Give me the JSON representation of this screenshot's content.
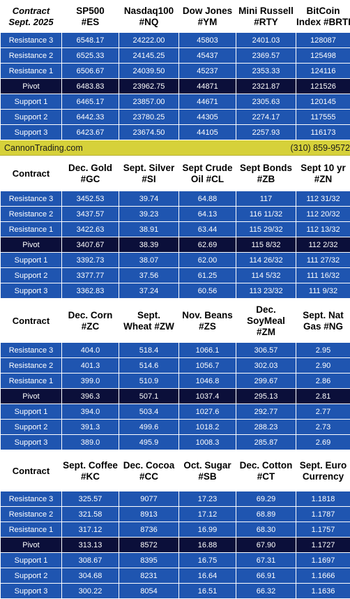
{
  "sections": [
    {
      "header_italic": true,
      "contract_label": [
        "Contract",
        "Sept. 2025"
      ],
      "columns": [
        [
          "SP500",
          "#ES"
        ],
        [
          "Nasdaq100",
          "#NQ"
        ],
        [
          "Dow Jones",
          "#YM"
        ],
        [
          "Mini Russell",
          "#RTY"
        ],
        [
          "BitCoin",
          "Index #BRTI"
        ]
      ],
      "rows": [
        {
          "label": "Resistance 3",
          "values": [
            "6548.17",
            "24222.00",
            "45803",
            "2401.03",
            "128087"
          ]
        },
        {
          "label": "Resistance 2",
          "values": [
            "6525.33",
            "24145.25",
            "45437",
            "2369.57",
            "125498"
          ]
        },
        {
          "label": "Resistance 1",
          "values": [
            "6506.67",
            "24039.50",
            "45237",
            "2353.33",
            "124116"
          ]
        },
        {
          "label": "Pivot",
          "values": [
            "6483.83",
            "23962.75",
            "44871",
            "2321.87",
            "121526"
          ]
        },
        {
          "label": "Support 1",
          "values": [
            "6465.17",
            "23857.00",
            "44671",
            "2305.63",
            "120145"
          ]
        },
        {
          "label": "Support 2",
          "values": [
            "6442.33",
            "23780.25",
            "44305",
            "2274.17",
            "117555"
          ]
        },
        {
          "label": "Support 3",
          "values": [
            "6423.67",
            "23674.50",
            "44105",
            "2257.93",
            "116173"
          ]
        }
      ]
    },
    {
      "header_italic": false,
      "contract_label": [
        "Contract"
      ],
      "columns": [
        [
          "Dec. Gold",
          "#GC"
        ],
        [
          "Sept. Silver",
          "#SI"
        ],
        [
          "Sept Crude",
          "Oil #CL"
        ],
        [
          "Sept Bonds",
          "#ZB"
        ],
        [
          "Sept 10 yr",
          "#ZN"
        ]
      ],
      "rows": [
        {
          "label": "Resistance 3",
          "values": [
            "3452.53",
            "39.74",
            "64.88",
            "117",
            "112 31/32"
          ]
        },
        {
          "label": "Resistance 2",
          "values": [
            "3437.57",
            "39.23",
            "64.13",
            "116 11/32",
            "112 20/32"
          ]
        },
        {
          "label": "Resistance 1",
          "values": [
            "3422.63",
            "38.91",
            "63.44",
            "115 29/32",
            "112 13/32"
          ]
        },
        {
          "label": "Pivot",
          "values": [
            "3407.67",
            "38.39",
            "62.69",
            "115  8/32",
            "112  2/32"
          ]
        },
        {
          "label": "Support 1",
          "values": [
            "3392.73",
            "38.07",
            "62.00",
            "114 26/32",
            "111 27/32"
          ]
        },
        {
          "label": "Support 2",
          "values": [
            "3377.77",
            "37.56",
            "61.25",
            "114  5/32",
            "111 16/32"
          ]
        },
        {
          "label": "Support 3",
          "values": [
            "3362.83",
            "37.24",
            "60.56",
            "113 23/32",
            "111  9/32"
          ]
        }
      ]
    },
    {
      "header_italic": false,
      "contract_label": [
        "Contract"
      ],
      "columns": [
        [
          "Dec. Corn",
          "#ZC"
        ],
        [
          "Sept.",
          "Wheat #ZW"
        ],
        [
          "Nov. Beans",
          "#ZS"
        ],
        [
          "Dec.",
          "SoyMeal",
          "#ZM"
        ],
        [
          "Sept. Nat",
          "Gas #NG"
        ]
      ],
      "rows": [
        {
          "label": "Resistance 3",
          "values": [
            "404.0",
            "518.4",
            "1066.1",
            "306.57",
            "2.95"
          ]
        },
        {
          "label": "Resistance 2",
          "values": [
            "401.3",
            "514.6",
            "1056.7",
            "302.03",
            "2.90"
          ]
        },
        {
          "label": "Resistance 1",
          "values": [
            "399.0",
            "510.9",
            "1046.8",
            "299.67",
            "2.86"
          ]
        },
        {
          "label": "Pivot",
          "values": [
            "396.3",
            "507.1",
            "1037.4",
            "295.13",
            "2.81"
          ]
        },
        {
          "label": "Support 1",
          "values": [
            "394.0",
            "503.4",
            "1027.6",
            "292.77",
            "2.77"
          ]
        },
        {
          "label": "Support 2",
          "values": [
            "391.3",
            "499.6",
            "1018.2",
            "288.23",
            "2.73"
          ]
        },
        {
          "label": "Support 3",
          "values": [
            "389.0",
            "495.9",
            "1008.3",
            "285.87",
            "2.69"
          ]
        }
      ]
    },
    {
      "header_italic": false,
      "contract_label": [
        "Contract"
      ],
      "columns": [
        [
          "Sept. Coffee",
          "#KC"
        ],
        [
          "Dec. Cocoa",
          "#CC"
        ],
        [
          "Oct. Sugar",
          "#SB"
        ],
        [
          "Dec. Cotton",
          "#CT"
        ],
        [
          "Sept. Euro",
          "Currency"
        ]
      ],
      "rows": [
        {
          "label": "Resistance 3",
          "values": [
            "325.57",
            "9077",
            "17.23",
            "69.29",
            "1.1818"
          ]
        },
        {
          "label": "Resistance 2",
          "values": [
            "321.58",
            "8913",
            "17.12",
            "68.89",
            "1.1787"
          ]
        },
        {
          "label": "Resistance 1",
          "values": [
            "317.12",
            "8736",
            "16.99",
            "68.30",
            "1.1757"
          ]
        },
        {
          "label": "Pivot",
          "values": [
            "313.13",
            "8572",
            "16.88",
            "67.90",
            "1.1727"
          ]
        },
        {
          "label": "Support 1",
          "values": [
            "308.67",
            "8395",
            "16.75",
            "67.31",
            "1.1697"
          ]
        },
        {
          "label": "Support 2",
          "values": [
            "304.68",
            "8231",
            "16.64",
            "66.91",
            "1.1666"
          ]
        },
        {
          "label": "Support 3",
          "values": [
            "300.22",
            "8054",
            "16.51",
            "66.32",
            "1.1636"
          ]
        }
      ]
    }
  ],
  "banner": {
    "site": "CannonTrading.com",
    "phone": "(310) 859-9572"
  },
  "colors": {
    "row_bg": "#1f55b0",
    "pivot_bg": "#0b0f3a",
    "banner_bg": "#d6d13a"
  }
}
